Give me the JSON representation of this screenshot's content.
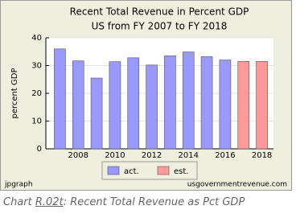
{
  "chart_data": {
    "type": "bar",
    "title": "Recent Total Revenue in Percent GDP",
    "subtitle": "US from FY 2007 to FY 2018",
    "y_label": "percent GDP",
    "categories": [
      null,
      "2008",
      null,
      "2010",
      null,
      "2012",
      null,
      "2014",
      null,
      "2016",
      null,
      "2018"
    ],
    "series": [
      {
        "name": "act.",
        "color": "#9999ff",
        "values": [
          36,
          31.7,
          25.5,
          31.4,
          32.8,
          30.2,
          33.5,
          34.9,
          33.2,
          32,
          null,
          null
        ]
      },
      {
        "name": "est.",
        "color": "#ff9999",
        "values": [
          null,
          null,
          null,
          null,
          null,
          null,
          null,
          null,
          null,
          null,
          31.5,
          31.5
        ]
      }
    ],
    "ylim": [
      0,
      40
    ],
    "yticks": [
      0,
      10,
      20,
      30,
      40
    ],
    "grid": true,
    "footer_left": "jpgraph",
    "footer_right": "usgovernmentrevenue.com"
  },
  "caption": {
    "prefix": "Chart",
    "link": "R.02t",
    "suffix": ": Recent Total Revenue as Pct GDP"
  }
}
